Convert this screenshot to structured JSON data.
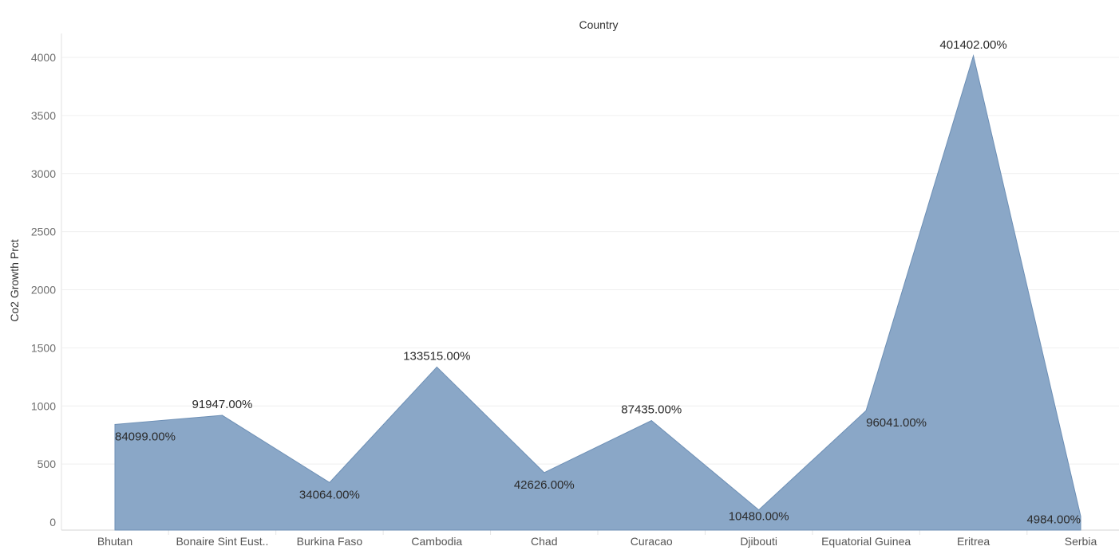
{
  "chart_data": {
    "type": "area",
    "title": "Country",
    "ylabel": "Co2 Growth Prct",
    "ylim": [
      0,
      4000
    ],
    "yticks": [
      0,
      500,
      1000,
      1500,
      2000,
      2500,
      3000,
      3500,
      4000
    ],
    "grid": true,
    "legend": "none",
    "fill_color": "#8aa7c7",
    "line_color": "#6d8fb5",
    "categories": [
      "Bhutan",
      "Bonaire Sint Eust..",
      "Burkina Faso",
      "Cambodia",
      "Chad",
      "Curacao",
      "Djibouti",
      "Equatorial Guinea",
      "Eritrea",
      "Serbia"
    ],
    "values": [
      841,
      919,
      341,
      1335,
      426,
      874,
      105,
      960,
      4014,
      50
    ],
    "data_labels": [
      "84099.00%",
      "91947.00%",
      "34064.00%",
      "133515.00%",
      "42626.00%",
      "87435.00%",
      "10480.00%",
      "96041.00%",
      "401402.00%",
      "4984.00%"
    ],
    "label_positions": [
      "below",
      "above",
      "below",
      "above",
      "below",
      "above",
      "below",
      "below",
      "above",
      "below"
    ]
  }
}
